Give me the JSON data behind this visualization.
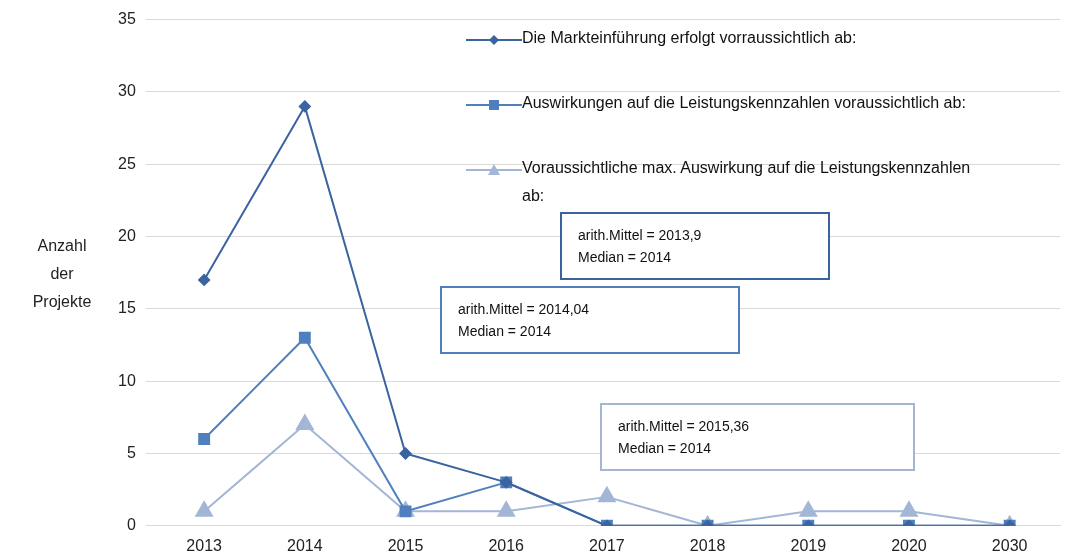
{
  "chart_data": {
    "type": "line",
    "ylabel": "Anzahl der Projekte",
    "categories": [
      "2013",
      "2014",
      "2015",
      "2016",
      "2017",
      "2018",
      "2019",
      "2020",
      "2030"
    ],
    "series": [
      {
        "name": "Die Markteinführung erfolgt vorraussichtlich ab:",
        "color": "#3a64a0",
        "marker": "diamond",
        "values": [
          17,
          29,
          5,
          3,
          0,
          0,
          0,
          0,
          0
        ]
      },
      {
        "name": "Auswirkungen auf die Leistungskennzahlen voraussichtlich ab:",
        "color": "#4f7fbd",
        "marker": "square",
        "values": [
          6,
          13,
          1,
          3,
          0,
          0,
          0,
          0,
          0
        ]
      },
      {
        "name": "Voraussichtliche max. Auswirkung  auf die Leistungskennzahlen  ab:",
        "color": "#a3b6d6",
        "marker": "triangle",
        "values": [
          1,
          7,
          1,
          1,
          2,
          0,
          1,
          1,
          0
        ]
      }
    ],
    "ylim": [
      0,
      35
    ],
    "yticks": [
      0,
      5,
      10,
      15,
      20,
      25,
      30,
      35
    ],
    "grid": "y",
    "legend": "top right",
    "line_style": "solid",
    "annotations": [
      "arith.Mittel  = 2013,9\nMedian = 2014",
      "arith.Mittel  = 2014,04\nMedian = 2014",
      "arith.Mittel  = 2015,36\nMedian = 2014"
    ]
  }
}
